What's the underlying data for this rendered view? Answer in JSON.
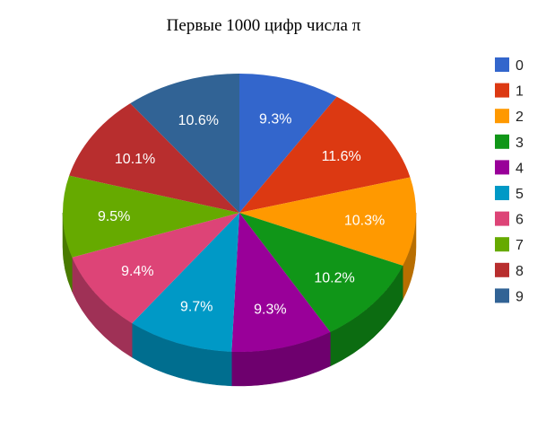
{
  "chart_data": {
    "type": "pie",
    "title": "Первые 1000 цифр числа π",
    "categories": [
      "0",
      "1",
      "2",
      "3",
      "4",
      "5",
      "6",
      "7",
      "8",
      "9"
    ],
    "values": [
      9.3,
      11.6,
      10.3,
      10.2,
      9.3,
      9.7,
      9.4,
      9.5,
      10.1,
      10.6
    ],
    "labels": [
      "9.3%",
      "11.6%",
      "10.3%",
      "10.2%",
      "9.3%",
      "9.7%",
      "9.4%",
      "9.5%",
      "10.1%",
      "10.6%"
    ],
    "colors": [
      "#3366cc",
      "#dc3912",
      "#ff9900",
      "#109618",
      "#990099",
      "#0099c6",
      "#dd4477",
      "#66aa00",
      "#b82e2e",
      "#316395"
    ],
    "legend_position": "right",
    "style": "3d"
  }
}
